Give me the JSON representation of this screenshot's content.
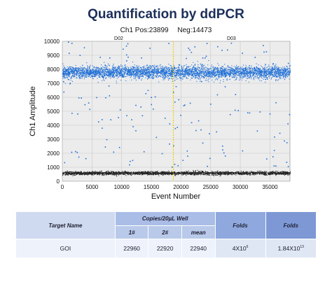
{
  "chart_data": {
    "type": "scatter",
    "title": "Quantification by ddPCR",
    "subtitle": {
      "positive": "Ch1 Pos:23899",
      "negative": "Neg:14473"
    },
    "xlabel": "Event Number",
    "ylabel": "Ch1 Amplitude",
    "xlim": [
      0,
      38372
    ],
    "ylim": [
      0,
      10000
    ],
    "xticks": [
      0,
      5000,
      10000,
      15000,
      20000,
      25000,
      30000,
      35000
    ],
    "yticks": [
      0,
      1000,
      2000,
      3000,
      4000,
      5000,
      6000,
      7000,
      8000,
      9000,
      10000
    ],
    "grid": true,
    "well_labels": [
      {
        "label": "D02",
        "x": 9500
      },
      {
        "label": "D03",
        "x": 28500
      }
    ],
    "well_divider_x": 18720,
    "series": [
      {
        "name": "positive",
        "color": "#1f6fd6",
        "count": 23899,
        "amplitude_center": 7800,
        "amplitude_spread": 450
      },
      {
        "name": "negative",
        "color": "#222222",
        "count": 14473,
        "amplitude_center": 600,
        "amplitude_spread": 120
      }
    ]
  },
  "table": {
    "target_header": "Target Name",
    "copies_header": "Copies/20µL Well",
    "sub_headers": [
      "1#",
      "2#",
      "mean"
    ],
    "folds_header_1": "Folds",
    "folds_header_2": "Folds",
    "row": {
      "target": "GOI",
      "copies": [
        "22960",
        "22920",
        "22940"
      ],
      "folds_1_base": "4X10",
      "folds_1_exp": "6",
      "folds_2_base": "1.84X10",
      "folds_2_exp": "13"
    }
  }
}
